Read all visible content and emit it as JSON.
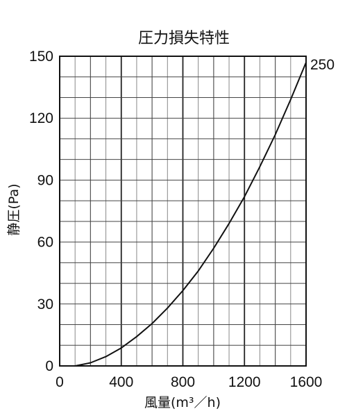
{
  "chart_data": {
    "type": "line",
    "title": "圧力損失特性",
    "xlabel": "風量(m³／h)",
    "ylabel": "静圧(Pa)",
    "xlim": [
      0,
      1600
    ],
    "ylim": [
      0,
      150
    ],
    "x_ticks": [
      "0",
      "400",
      "800",
      "1200",
      "1600"
    ],
    "y_ticks": [
      "0",
      "30",
      "60",
      "90",
      "120",
      "150"
    ],
    "grid": true,
    "series": [
      {
        "name": "250",
        "color": "#111111",
        "x": [
          100,
          200,
          300,
          400,
          500,
          600,
          700,
          800,
          900,
          1000,
          1100,
          1200,
          1300,
          1400,
          1500,
          1600
        ],
        "y": [
          0,
          1.5,
          4.5,
          8.7,
          14.2,
          20.5,
          28,
          36.5,
          46,
          57,
          69,
          82,
          96.5,
          112,
          129,
          147
        ]
      }
    ]
  }
}
